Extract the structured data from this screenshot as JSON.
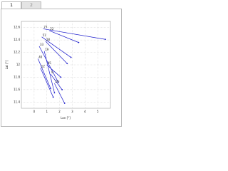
{
  "tabs": [
    "1",
    "2"
  ],
  "chart_data": {
    "type": "vector",
    "xlabel": "Lon [°]",
    "ylabel": "Lat [°]",
    "xlim": [
      -1,
      6
    ],
    "xticks": [
      0,
      1,
      2,
      3,
      4,
      5
    ],
    "ylim": [
      11.3,
      12.7
    ],
    "yticks": [
      11.4,
      11.6,
      11.8,
      12.0,
      12.2,
      12.4,
      12.6
    ],
    "grid": true,
    "color": "#1a1acc",
    "segments": [
      {
        "label": "77",
        "x": [
          0.7,
          5.6
        ],
        "y": [
          12.58,
          12.41
        ]
      },
      {
        "label": "22",
        "x": [
          1.2,
          3.5
        ],
        "y": [
          12.55,
          12.36
        ]
      },
      {
        "label": "51",
        "x": [
          0.6,
          2.9
        ],
        "y": [
          12.45,
          12.12
        ]
      },
      {
        "label": "28",
        "x": [
          0.9,
          2.6
        ],
        "y": [
          12.38,
          12.02
        ]
      },
      {
        "label": "33",
        "x": [
          0.4,
          1.9
        ],
        "y": [
          12.3,
          11.72
        ]
      },
      {
        "label": "19",
        "x": [
          0.8,
          1.6
        ],
        "y": [
          12.22,
          11.55
        ]
      },
      {
        "label": "40",
        "x": [
          0.3,
          1.3
        ],
        "y": [
          12.1,
          11.62
        ]
      },
      {
        "label": "45",
        "x": [
          1.0,
          2.1
        ],
        "y": [
          12.0,
          11.8
        ]
      },
      {
        "label": "12",
        "x": [
          0.5,
          1.5
        ],
        "y": [
          11.95,
          11.48
        ]
      },
      {
        "label": "9",
        "x": [
          1.3,
          2.2
        ],
        "y": [
          11.85,
          11.6
        ]
      },
      {
        "label": "29",
        "x": [
          1.6,
          2.4
        ],
        "y": [
          11.7,
          11.38
        ]
      }
    ]
  }
}
